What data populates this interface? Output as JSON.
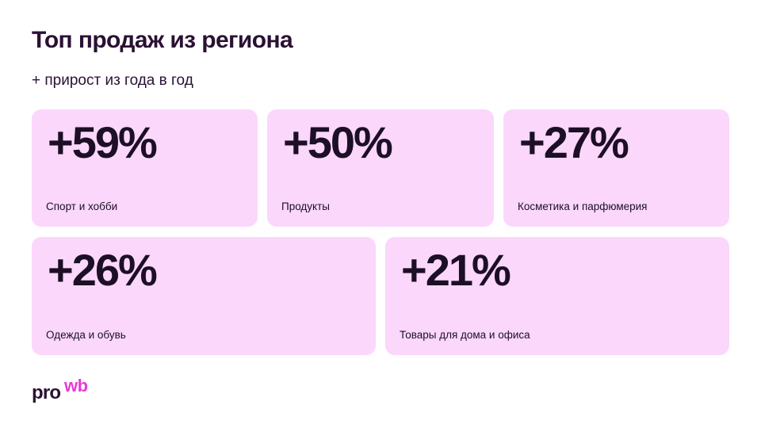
{
  "header": {
    "title": "Топ продаж из региона",
    "subtitle": "+ прирост из года в год"
  },
  "cards": [
    {
      "value": "+59%",
      "label": "Спорт и хобби"
    },
    {
      "value": "+50%",
      "label": "Продукты"
    },
    {
      "value": "+27%",
      "label": "Косметика и парфюмерия"
    },
    {
      "value": "+26%",
      "label": "Одежда и обувь"
    },
    {
      "value": "+21%",
      "label": "Товары для дома и офиса"
    }
  ],
  "logo": {
    "pro": "pro",
    "wb": "wb"
  },
  "colors": {
    "card_background": "#fbd7fc",
    "text_dark": "#1c0f26",
    "brand_accent": "#e73bd4"
  }
}
